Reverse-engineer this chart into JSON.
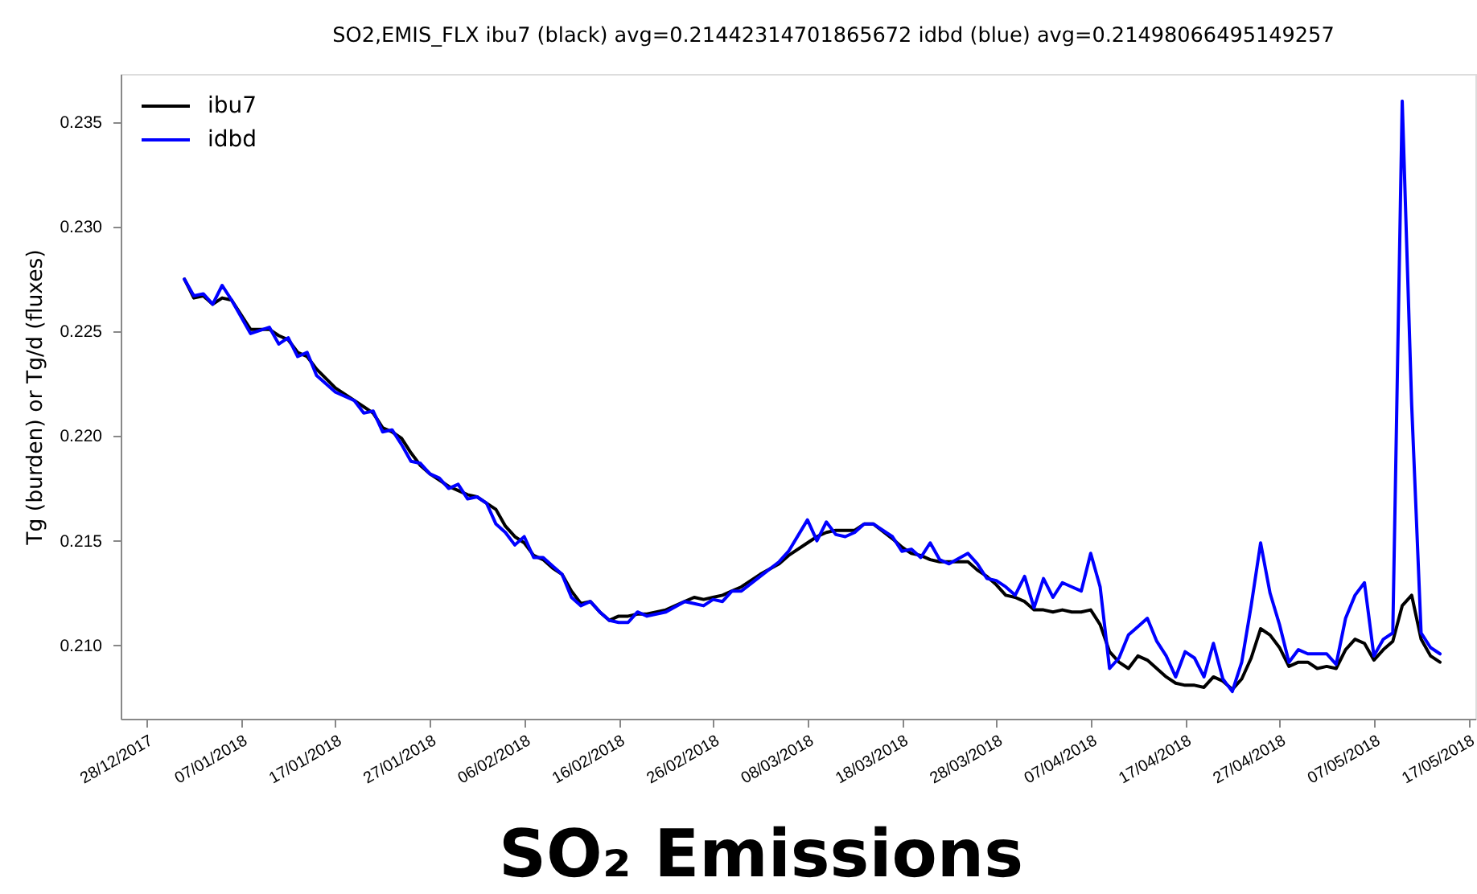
{
  "chart_data": {
    "type": "line",
    "title": "SO2,EMIS_FLX ibu7 (black) avg=0.21442314701865672 idbd (blue) avg=0.21498066495149257",
    "ylabel": "Tg (burden) or Tg/d (fluxes)",
    "annotations": [
      "SO₂ Emissions"
    ],
    "x": [
      "2018-01-01",
      "2018-01-02",
      "2018-01-03",
      "2018-01-04",
      "2018-01-05",
      "2018-01-06",
      "2018-01-08",
      "2018-01-10",
      "2018-01-11",
      "2018-01-12",
      "2018-01-13",
      "2018-01-14",
      "2018-01-15",
      "2018-01-17",
      "2018-01-19",
      "2018-01-20",
      "2018-01-21",
      "2018-01-22",
      "2018-01-23",
      "2018-01-24",
      "2018-01-25",
      "2018-01-26",
      "2018-01-27",
      "2018-01-28",
      "2018-01-29",
      "2018-01-30",
      "2018-01-31",
      "2018-02-01",
      "2018-02-02",
      "2018-02-03",
      "2018-02-04",
      "2018-02-05",
      "2018-02-06",
      "2018-02-07",
      "2018-02-08",
      "2018-02-09",
      "2018-02-10",
      "2018-02-11",
      "2018-02-12",
      "2018-02-13",
      "2018-02-14",
      "2018-02-15",
      "2018-02-16",
      "2018-02-17",
      "2018-02-18",
      "2018-02-19",
      "2018-02-21",
      "2018-02-23",
      "2018-02-24",
      "2018-02-25",
      "2018-02-26",
      "2018-02-27",
      "2018-02-28",
      "2018-03-01",
      "2018-03-03",
      "2018-03-05",
      "2018-03-06",
      "2018-03-08",
      "2018-03-09",
      "2018-03-10",
      "2018-03-11",
      "2018-03-12",
      "2018-03-13",
      "2018-03-14",
      "2018-03-15",
      "2018-03-17",
      "2018-03-18",
      "2018-03-19",
      "2018-03-20",
      "2018-03-21",
      "2018-03-22",
      "2018-03-23",
      "2018-03-25",
      "2018-03-26",
      "2018-03-27",
      "2018-03-28",
      "2018-03-29",
      "2018-03-30",
      "2018-03-31",
      "2018-04-01",
      "2018-04-02",
      "2018-04-03",
      "2018-04-04",
      "2018-04-05",
      "2018-04-06",
      "2018-04-07",
      "2018-04-08",
      "2018-04-09",
      "2018-04-10",
      "2018-04-11",
      "2018-04-12",
      "2018-04-13",
      "2018-04-14",
      "2018-04-15",
      "2018-04-16",
      "2018-04-17",
      "2018-04-18",
      "2018-04-19",
      "2018-04-20",
      "2018-04-21",
      "2018-04-22",
      "2018-04-23",
      "2018-04-24",
      "2018-04-25",
      "2018-04-26",
      "2018-04-27",
      "2018-04-28",
      "2018-04-29",
      "2018-04-30",
      "2018-05-01",
      "2018-05-02",
      "2018-05-03",
      "2018-05-04",
      "2018-05-05",
      "2018-05-06",
      "2018-05-07",
      "2018-05-08",
      "2018-05-09",
      "2018-05-10",
      "2018-05-11",
      "2018-05-12",
      "2018-05-13",
      "2018-05-14"
    ],
    "series": [
      {
        "name": "ibu7",
        "color": "#000000",
        "values": [
          0.2275,
          0.2266,
          0.2267,
          0.2263,
          0.2266,
          0.2265,
          0.2251,
          0.2251,
          0.2248,
          0.2246,
          0.224,
          0.2238,
          0.2232,
          0.2223,
          0.2217,
          0.2214,
          0.2211,
          0.2204,
          0.2202,
          0.2199,
          0.2192,
          0.2186,
          0.2182,
          0.2179,
          0.2176,
          0.2174,
          0.2172,
          0.2171,
          0.2168,
          0.2165,
          0.2157,
          0.2152,
          0.2149,
          0.2143,
          0.2141,
          0.2137,
          0.2134,
          0.2126,
          0.212,
          0.2121,
          0.2116,
          0.2112,
          0.2114,
          0.2114,
          0.2115,
          0.2115,
          0.2117,
          0.2121,
          0.2123,
          0.2122,
          0.2123,
          0.2124,
          0.2126,
          0.2128,
          0.2134,
          0.2139,
          0.2143,
          0.2149,
          0.2152,
          0.2154,
          0.2155,
          0.2155,
          0.2155,
          0.2158,
          0.2158,
          0.2151,
          0.2147,
          0.2144,
          0.2143,
          0.2141,
          0.214,
          0.214,
          0.214,
          0.2136,
          0.2133,
          0.2129,
          0.2124,
          0.2123,
          0.2121,
          0.2117,
          0.2117,
          0.2116,
          0.2117,
          0.2116,
          0.2116,
          0.2117,
          0.211,
          0.2097,
          0.2092,
          0.2089,
          0.2095,
          0.2093,
          0.2089,
          0.2085,
          0.2082,
          0.2081,
          0.2081,
          0.208,
          0.2085,
          0.2083,
          0.2079,
          0.2084,
          0.2094,
          0.2108,
          0.2105,
          0.2099,
          0.209,
          0.2092,
          0.2092,
          0.2089,
          0.209,
          0.2089,
          0.2098,
          0.2103,
          0.2101,
          0.2093,
          0.2098,
          0.2102,
          0.2119,
          0.2124,
          0.2103,
          0.2095,
          0.2092
        ]
      },
      {
        "name": "idbd",
        "color": "#0000ff",
        "values": [
          0.2275,
          0.2267,
          0.2268,
          0.2263,
          0.2272,
          0.2265,
          0.2249,
          0.2252,
          0.2244,
          0.2247,
          0.2238,
          0.224,
          0.2229,
          0.2221,
          0.2217,
          0.2211,
          0.2212,
          0.2202,
          0.2203,
          0.2196,
          0.2188,
          0.2187,
          0.2182,
          0.218,
          0.2175,
          0.2177,
          0.217,
          0.2171,
          0.2168,
          0.2158,
          0.2154,
          0.2148,
          0.2152,
          0.2142,
          0.2142,
          0.2138,
          0.2134,
          0.2123,
          0.2119,
          0.2121,
          0.2116,
          0.2112,
          0.2111,
          0.2111,
          0.2116,
          0.2114,
          0.2116,
          0.2121,
          0.212,
          0.2119,
          0.2122,
          0.2121,
          0.2126,
          0.2126,
          0.2133,
          0.214,
          0.2145,
          0.216,
          0.215,
          0.2159,
          0.2153,
          0.2152,
          0.2154,
          0.2158,
          0.2158,
          0.2152,
          0.2145,
          0.2146,
          0.2142,
          0.2149,
          0.2141,
          0.2139,
          0.2144,
          0.2139,
          0.2132,
          0.2131,
          0.2128,
          0.2124,
          0.2133,
          0.2118,
          0.2132,
          0.2123,
          0.213,
          0.2128,
          0.2126,
          0.2144,
          0.2128,
          0.2089,
          0.2094,
          0.2105,
          0.2109,
          0.2113,
          0.2102,
          0.2095,
          0.2085,
          0.2097,
          0.2094,
          0.2085,
          0.2101,
          0.2084,
          0.2078,
          0.2092,
          0.2119,
          0.2149,
          0.2125,
          0.211,
          0.2092,
          0.2098,
          0.2096,
          0.2096,
          0.2096,
          0.2091,
          0.2113,
          0.2124,
          0.213,
          0.2095,
          0.2103,
          0.2106,
          0.236,
          0.2215,
          0.2106,
          0.2099,
          0.2096
        ]
      }
    ],
    "xlim": [
      "2017-12-25T06:00",
      "2018-05-17T18:00"
    ],
    "xticks": [
      {
        "value": "2017-12-28",
        "label": "28/12/2017"
      },
      {
        "value": "2018-01-07",
        "label": "07/01/2018"
      },
      {
        "value": "2018-01-17",
        "label": "17/01/2018"
      },
      {
        "value": "2018-01-27",
        "label": "27/01/2018"
      },
      {
        "value": "2018-02-06",
        "label": "06/02/2018"
      },
      {
        "value": "2018-02-16",
        "label": "16/02/2018"
      },
      {
        "value": "2018-02-26",
        "label": "26/02/2018"
      },
      {
        "value": "2018-03-08",
        "label": "08/03/2018"
      },
      {
        "value": "2018-03-18",
        "label": "18/03/2018"
      },
      {
        "value": "2018-03-28",
        "label": "28/03/2018"
      },
      {
        "value": "2018-04-07",
        "label": "07/04/2018"
      },
      {
        "value": "2018-04-17",
        "label": "17/04/2018"
      },
      {
        "value": "2018-04-27",
        "label": "27/04/2018"
      },
      {
        "value": "2018-05-07",
        "label": "07/05/2018"
      },
      {
        "value": "2018-05-17",
        "label": "17/05/2018"
      }
    ],
    "ylim": [
      0.2065,
      0.2373
    ],
    "yticks": [
      {
        "value": 0.21,
        "label": "0.210"
      },
      {
        "value": 0.215,
        "label": "0.215"
      },
      {
        "value": 0.22,
        "label": "0.220"
      },
      {
        "value": 0.225,
        "label": "0.225"
      },
      {
        "value": 0.23,
        "label": "0.230"
      },
      {
        "value": 0.235,
        "label": "0.235"
      }
    ],
    "grid": false,
    "legend": "top left"
  }
}
